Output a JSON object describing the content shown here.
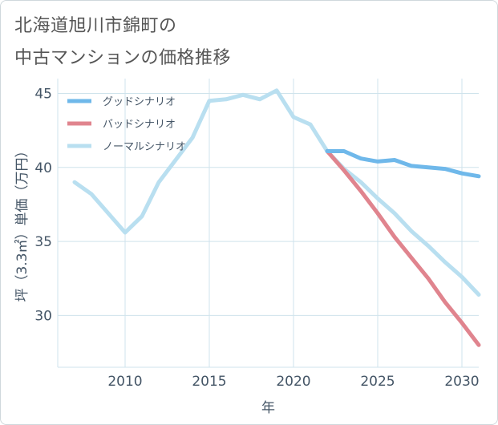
{
  "title_line1": "北海道旭川市錦町の",
  "title_line2": "中古マンションの価格推移",
  "chart_data": {
    "type": "line",
    "xlabel": "年",
    "ylabel": "坪（3.3㎡）単価（万円）",
    "xlim": [
      2006,
      2031
    ],
    "ylim": [
      26.5,
      46
    ],
    "xticks": [
      2010,
      2015,
      2020,
      2025,
      2030
    ],
    "yticks": [
      30,
      35,
      40,
      45
    ],
    "grid": true,
    "legend_position": "top-left",
    "series": [
      {
        "name": "グッドシナリオ",
        "color": "#6fb8ea",
        "x": [
          2022,
          2023,
          2024,
          2025,
          2026,
          2027,
          2028,
          2029,
          2030,
          2031
        ],
        "y": [
          41.1,
          41.1,
          40.6,
          40.4,
          40.5,
          40.1,
          40.0,
          39.9,
          39.6,
          39.4
        ]
      },
      {
        "name": "バッドシナリオ",
        "color": "#e0848e",
        "x": [
          2022,
          2023,
          2024,
          2025,
          2026,
          2027,
          2028,
          2029,
          2030,
          2031
        ],
        "y": [
          41.1,
          39.8,
          38.4,
          36.9,
          35.3,
          33.9,
          32.5,
          30.9,
          29.5,
          28.0
        ]
      },
      {
        "name": "ノーマルシナリオ",
        "color": "#b9dff0",
        "x": [
          2007,
          2008,
          2009,
          2010,
          2011,
          2012,
          2013,
          2014,
          2015,
          2016,
          2017,
          2018,
          2019,
          2020,
          2021,
          2022,
          2023,
          2024,
          2025,
          2026,
          2027,
          2028,
          2029,
          2030,
          2031
        ],
        "y": [
          39.0,
          38.2,
          36.9,
          35.6,
          36.7,
          39.0,
          40.5,
          42.0,
          44.5,
          44.6,
          44.9,
          44.6,
          45.2,
          43.4,
          42.9,
          41.1,
          39.9,
          39.0,
          37.9,
          36.9,
          35.7,
          34.7,
          33.6,
          32.6,
          31.4
        ]
      }
    ]
  }
}
